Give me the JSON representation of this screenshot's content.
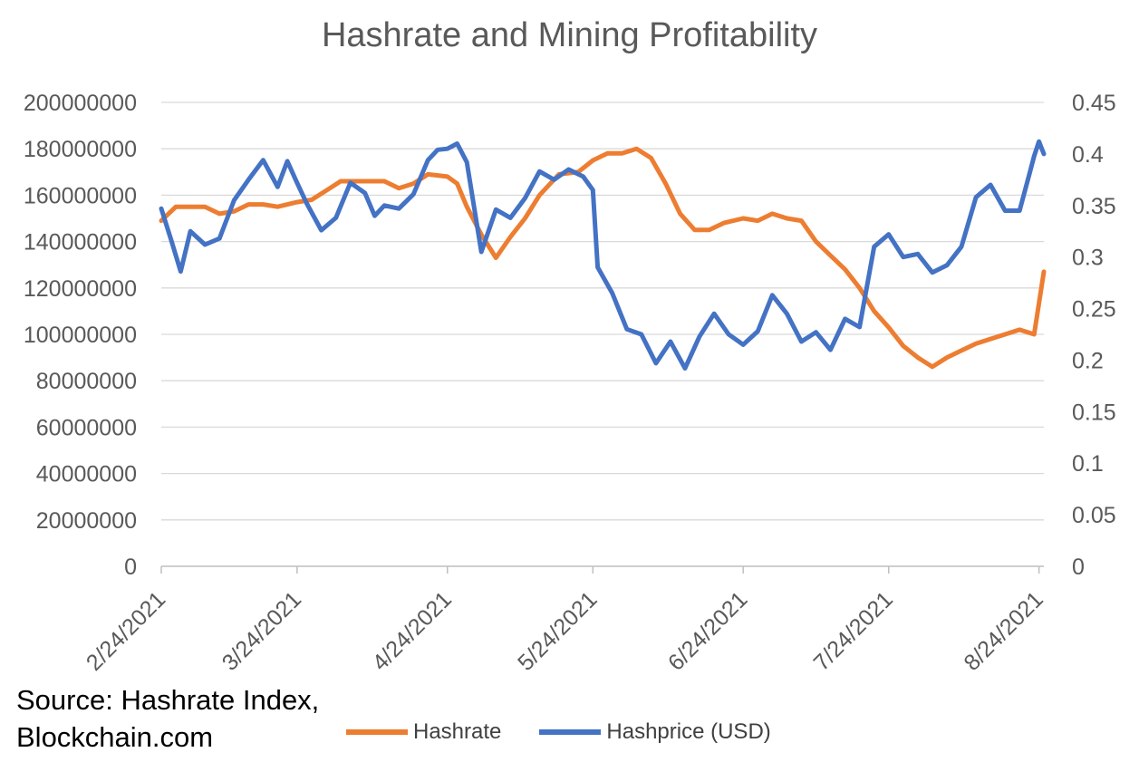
{
  "chart_data": {
    "type": "line",
    "title": "Hashrate and Mining Profitability",
    "source_line1": "Source: Hashrate Index,",
    "source_line2": "Blockchain.com",
    "x_ticks": [
      "2/24/2021",
      "3/24/2021",
      "4/24/2021",
      "5/24/2021",
      "6/24/2021",
      "7/24/2021",
      "8/24/2021"
    ],
    "x_range": [
      "2021-02-24",
      "2021-08-25"
    ],
    "y_left": {
      "lim": [
        0,
        200000000
      ],
      "ticks": [
        "0",
        "20000000",
        "40000000",
        "60000000",
        "80000000",
        "100000000",
        "120000000",
        "140000000",
        "160000000",
        "180000000",
        "200000000"
      ]
    },
    "y_right": {
      "lim": [
        0,
        0.45
      ],
      "ticks": [
        "0",
        "0.05",
        "0.1",
        "0.15",
        "0.2",
        "0.25",
        "0.3",
        "0.35",
        "0.4",
        "0.45"
      ]
    },
    "grid": "horizontal",
    "legend_position": "bottom",
    "series": [
      {
        "name": "Hashrate",
        "axis": "left",
        "color": "#ED7D31",
        "points": [
          [
            "2021-02-24",
            149000000
          ],
          [
            "2021-02-27",
            155000000
          ],
          [
            "2021-03-02",
            155000000
          ],
          [
            "2021-03-05",
            155000000
          ],
          [
            "2021-03-08",
            152000000
          ],
          [
            "2021-03-11",
            153000000
          ],
          [
            "2021-03-14",
            156000000
          ],
          [
            "2021-03-17",
            156000000
          ],
          [
            "2021-03-20",
            155000000
          ],
          [
            "2021-03-24",
            157000000
          ],
          [
            "2021-03-27",
            158000000
          ],
          [
            "2021-03-30",
            162000000
          ],
          [
            "2021-04-02",
            166000000
          ],
          [
            "2021-04-05",
            166000000
          ],
          [
            "2021-04-08",
            166000000
          ],
          [
            "2021-04-11",
            166000000
          ],
          [
            "2021-04-14",
            163000000
          ],
          [
            "2021-04-17",
            165000000
          ],
          [
            "2021-04-20",
            169000000
          ],
          [
            "2021-04-24",
            168000000
          ],
          [
            "2021-04-26",
            165000000
          ],
          [
            "2021-04-28",
            155000000
          ],
          [
            "2021-05-01",
            143000000
          ],
          [
            "2021-05-04",
            133000000
          ],
          [
            "2021-05-07",
            142000000
          ],
          [
            "2021-05-10",
            150000000
          ],
          [
            "2021-05-13",
            160000000
          ],
          [
            "2021-05-17",
            169000000
          ],
          [
            "2021-05-21",
            170000000
          ],
          [
            "2021-05-24",
            175000000
          ],
          [
            "2021-05-27",
            178000000
          ],
          [
            "2021-05-30",
            178000000
          ],
          [
            "2021-06-02",
            180000000
          ],
          [
            "2021-06-05",
            176000000
          ],
          [
            "2021-06-08",
            165000000
          ],
          [
            "2021-06-11",
            152000000
          ],
          [
            "2021-06-14",
            145000000
          ],
          [
            "2021-06-17",
            145000000
          ],
          [
            "2021-06-20",
            148000000
          ],
          [
            "2021-06-24",
            150000000
          ],
          [
            "2021-06-27",
            149000000
          ],
          [
            "2021-06-30",
            152000000
          ],
          [
            "2021-07-03",
            150000000
          ],
          [
            "2021-07-06",
            149000000
          ],
          [
            "2021-07-09",
            140000000
          ],
          [
            "2021-07-12",
            134000000
          ],
          [
            "2021-07-15",
            128000000
          ],
          [
            "2021-07-18",
            120000000
          ],
          [
            "2021-07-21",
            110000000
          ],
          [
            "2021-07-24",
            103000000
          ],
          [
            "2021-07-27",
            95000000
          ],
          [
            "2021-07-30",
            90000000
          ],
          [
            "2021-08-02",
            86000000
          ],
          [
            "2021-08-05",
            90000000
          ],
          [
            "2021-08-08",
            93000000
          ],
          [
            "2021-08-11",
            96000000
          ],
          [
            "2021-08-14",
            98000000
          ],
          [
            "2021-08-17",
            100000000
          ],
          [
            "2021-08-20",
            102000000
          ],
          [
            "2021-08-23",
            100000000
          ],
          [
            "2021-08-25",
            127000000
          ]
        ]
      },
      {
        "name": "Hashprice  (USD)",
        "axis": "right",
        "color": "#4472C4",
        "points": [
          [
            "2021-02-24",
            0.347
          ],
          [
            "2021-02-26",
            0.317
          ],
          [
            "2021-02-28",
            0.286
          ],
          [
            "2021-03-02",
            0.325
          ],
          [
            "2021-03-05",
            0.312
          ],
          [
            "2021-03-08",
            0.318
          ],
          [
            "2021-03-11",
            0.355
          ],
          [
            "2021-03-14",
            0.375
          ],
          [
            "2021-03-17",
            0.394
          ],
          [
            "2021-03-20",
            0.368
          ],
          [
            "2021-03-22",
            0.393
          ],
          [
            "2021-03-24",
            0.372
          ],
          [
            "2021-03-26",
            0.352
          ],
          [
            "2021-03-29",
            0.326
          ],
          [
            "2021-04-01",
            0.338
          ],
          [
            "2021-04-04",
            0.372
          ],
          [
            "2021-04-07",
            0.362
          ],
          [
            "2021-04-09",
            0.34
          ],
          [
            "2021-04-11",
            0.35
          ],
          [
            "2021-04-14",
            0.347
          ],
          [
            "2021-04-17",
            0.361
          ],
          [
            "2021-04-20",
            0.394
          ],
          [
            "2021-04-22",
            0.404
          ],
          [
            "2021-04-24",
            0.405
          ],
          [
            "2021-04-26",
            0.41
          ],
          [
            "2021-04-28",
            0.392
          ],
          [
            "2021-05-01",
            0.305
          ],
          [
            "2021-05-04",
            0.346
          ],
          [
            "2021-05-07",
            0.338
          ],
          [
            "2021-05-10",
            0.357
          ],
          [
            "2021-05-13",
            0.383
          ],
          [
            "2021-05-16",
            0.375
          ],
          [
            "2021-05-19",
            0.385
          ],
          [
            "2021-05-22",
            0.378
          ],
          [
            "2021-05-24",
            0.365
          ],
          [
            "2021-05-25",
            0.29
          ],
          [
            "2021-05-28",
            0.265
          ],
          [
            "2021-05-31",
            0.23
          ],
          [
            "2021-06-03",
            0.225
          ],
          [
            "2021-06-06",
            0.197
          ],
          [
            "2021-06-09",
            0.218
          ],
          [
            "2021-06-12",
            0.192
          ],
          [
            "2021-06-15",
            0.223
          ],
          [
            "2021-06-18",
            0.245
          ],
          [
            "2021-06-21",
            0.225
          ],
          [
            "2021-06-24",
            0.215
          ],
          [
            "2021-06-27",
            0.228
          ],
          [
            "2021-06-30",
            0.263
          ],
          [
            "2021-07-03",
            0.245
          ],
          [
            "2021-07-06",
            0.218
          ],
          [
            "2021-07-09",
            0.227
          ],
          [
            "2021-07-12",
            0.21
          ],
          [
            "2021-07-15",
            0.24
          ],
          [
            "2021-07-18",
            0.232
          ],
          [
            "2021-07-21",
            0.31
          ],
          [
            "2021-07-24",
            0.322
          ],
          [
            "2021-07-27",
            0.3
          ],
          [
            "2021-07-30",
            0.303
          ],
          [
            "2021-08-02",
            0.285
          ],
          [
            "2021-08-05",
            0.292
          ],
          [
            "2021-08-08",
            0.31
          ],
          [
            "2021-08-11",
            0.358
          ],
          [
            "2021-08-14",
            0.37
          ],
          [
            "2021-08-17",
            0.345
          ],
          [
            "2021-08-20",
            0.345
          ],
          [
            "2021-08-22",
            0.38
          ],
          [
            "2021-08-23",
            0.398
          ],
          [
            "2021-08-24",
            0.412
          ],
          [
            "2021-08-25",
            0.4
          ]
        ]
      }
    ]
  }
}
